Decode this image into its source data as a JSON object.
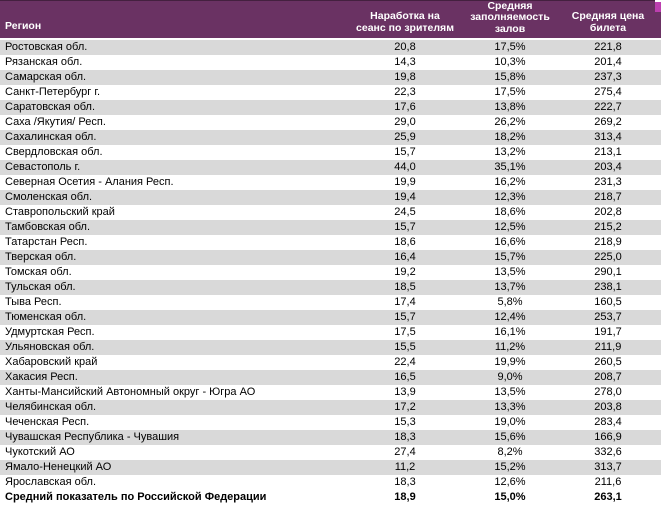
{
  "colors": {
    "header_bg": "#6A3263",
    "header_top_line": "#44203F",
    "accent": "#BC3FAF",
    "stripe": "#D9D9D9"
  },
  "table": {
    "columns": [
      "Регион",
      "Наработка на сеанс по зрителям",
      "Средняя заполняемость залов",
      "Средняя цена билета"
    ],
    "rows": [
      [
        "Ростовская обл.",
        "20,8",
        "17,5%",
        "221,8"
      ],
      [
        "Рязанская обл.",
        "14,3",
        "10,3%",
        "201,4"
      ],
      [
        "Самарская обл.",
        "19,8",
        "15,8%",
        "237,3"
      ],
      [
        "Санкт-Петербург г.",
        "22,3",
        "17,5%",
        "275,4"
      ],
      [
        "Саратовская обл.",
        "17,6",
        "13,8%",
        "222,7"
      ],
      [
        "Саха /Якутия/ Респ.",
        "29,0",
        "26,2%",
        "269,2"
      ],
      [
        "Сахалинская обл.",
        "25,9",
        "18,2%",
        "313,4"
      ],
      [
        "Свердловская обл.",
        "15,7",
        "13,2%",
        "213,1"
      ],
      [
        "Севастополь г.",
        "44,0",
        "35,1%",
        "203,4"
      ],
      [
        "Северная Осетия - Алания Респ.",
        "19,9",
        "16,2%",
        "231,3"
      ],
      [
        "Смоленская обл.",
        "19,4",
        "12,3%",
        "218,7"
      ],
      [
        "Ставропольский край",
        "24,5",
        "18,6%",
        "202,8"
      ],
      [
        "Тамбовская обл.",
        "15,7",
        "12,5%",
        "215,2"
      ],
      [
        "Татарстан Респ.",
        "18,6",
        "16,6%",
        "218,9"
      ],
      [
        "Тверская обл.",
        "16,4",
        "15,7%",
        "225,0"
      ],
      [
        "Томская обл.",
        "19,2",
        "13,5%",
        "290,1"
      ],
      [
        "Тульская обл.",
        "18,5",
        "13,7%",
        "238,1"
      ],
      [
        "Тыва Респ.",
        "17,4",
        "5,8%",
        "160,5"
      ],
      [
        "Тюменская обл.",
        "15,7",
        "12,4%",
        "253,7"
      ],
      [
        "Удмуртская Респ.",
        "17,5",
        "16,1%",
        "191,7"
      ],
      [
        "Ульяновская обл.",
        "15,5",
        "11,2%",
        "211,9"
      ],
      [
        "Хабаровский край",
        "22,4",
        "19,9%",
        "260,5"
      ],
      [
        "Хакасия Респ.",
        "16,5",
        "9,0%",
        "208,7"
      ],
      [
        "Ханты-Мансийский Автономный округ - Югра АО",
        "13,9",
        "13,5%",
        "278,0"
      ],
      [
        "Челябинская обл.",
        "17,2",
        "13,3%",
        "203,8"
      ],
      [
        "Чеченская Респ.",
        "15,3",
        "19,0%",
        "283,4"
      ],
      [
        "Чувашская Республика - Чувашия",
        "18,3",
        "15,6%",
        "166,9"
      ],
      [
        "Чукотский АО",
        "27,4",
        "8,2%",
        "332,6"
      ],
      [
        "Ямало-Ненецкий АО",
        "11,2",
        "15,2%",
        "313,7"
      ],
      [
        "Ярославская обл.",
        "18,3",
        "12,6%",
        "211,6"
      ]
    ],
    "total_row": [
      "Средний показатель по Российской Федерации",
      "18,9",
      "15,0%",
      "263,1"
    ]
  }
}
